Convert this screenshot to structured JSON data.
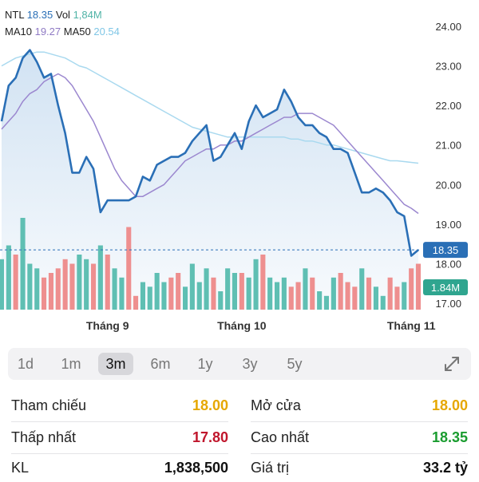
{
  "legend": {
    "ticker": "NTL",
    "price": "18.35",
    "vol_label": "Vol",
    "vol_value": "1,84M",
    "ma10_label": "MA10",
    "ma10_value": "19.27",
    "ma50_label": "MA50",
    "ma50_value": "20.54"
  },
  "colors": {
    "price_line": "#2a6fb6",
    "area_fill": "#cfe1f2",
    "ma10": "#9b87cf",
    "ma50": "#a9d9ef",
    "vol_up": "#5fbfb3",
    "vol_down": "#ee8f8f",
    "ref_line": "#2a6fb6",
    "price_tag": "#2a6fb6",
    "vol_tag": "#2fa58f"
  },
  "chart_data": {
    "type": "line",
    "y_axis": {
      "ticks": [
        "24.00",
        "23.00",
        "22.00",
        "21.00",
        "20.00",
        "19.00",
        "18.00",
        "17.00"
      ],
      "min": 16.9,
      "max": 24.3,
      "position": "right"
    },
    "x_axis": {
      "labels": [
        "Tháng 9",
        "Tháng 10",
        "Tháng 11"
      ],
      "label_index": [
        15,
        34,
        58
      ]
    },
    "reference_price": 18.35,
    "price_tag": "18.35",
    "volume_tag": "1.84M",
    "close": [
      21.6,
      22.5,
      22.7,
      23.2,
      23.4,
      23.1,
      22.7,
      22.8,
      22.0,
      21.3,
      20.3,
      20.3,
      20.7,
      20.4,
      19.3,
      19.6,
      19.6,
      19.6,
      19.6,
      19.7,
      20.2,
      20.1,
      20.5,
      20.6,
      20.7,
      20.7,
      20.8,
      21.1,
      21.3,
      21.5,
      20.6,
      20.7,
      21.0,
      21.3,
      20.9,
      21.6,
      22.0,
      21.7,
      21.8,
      21.9,
      22.4,
      22.1,
      21.7,
      21.5,
      21.5,
      21.3,
      21.2,
      20.9,
      20.9,
      20.8,
      20.3,
      19.8,
      19.8,
      19.9,
      19.8,
      19.6,
      19.3,
      19.2,
      18.2,
      18.35
    ],
    "ma10": [
      21.4,
      21.6,
      21.8,
      22.1,
      22.3,
      22.4,
      22.6,
      22.7,
      22.8,
      22.7,
      22.5,
      22.2,
      21.9,
      21.6,
      21.2,
      20.8,
      20.4,
      20.1,
      19.9,
      19.7,
      19.7,
      19.8,
      19.9,
      20.0,
      20.2,
      20.4,
      20.6,
      20.7,
      20.8,
      20.9,
      20.9,
      21.0,
      21.0,
      21.1,
      21.1,
      21.2,
      21.3,
      21.4,
      21.5,
      21.6,
      21.7,
      21.7,
      21.8,
      21.8,
      21.8,
      21.7,
      21.6,
      21.5,
      21.3,
      21.1,
      20.9,
      20.7,
      20.5,
      20.3,
      20.1,
      19.9,
      19.7,
      19.5,
      19.4,
      19.27
    ],
    "ma50": [
      23.0,
      23.1,
      23.2,
      23.25,
      23.3,
      23.35,
      23.35,
      23.3,
      23.25,
      23.2,
      23.1,
      23.0,
      22.95,
      22.85,
      22.75,
      22.65,
      22.55,
      22.45,
      22.35,
      22.25,
      22.15,
      22.05,
      21.95,
      21.85,
      21.75,
      21.65,
      21.55,
      21.45,
      21.4,
      21.35,
      21.3,
      21.25,
      21.2,
      21.2,
      21.2,
      21.2,
      21.2,
      21.2,
      21.2,
      21.2,
      21.2,
      21.15,
      21.15,
      21.1,
      21.1,
      21.05,
      21.0,
      21.0,
      20.95,
      20.9,
      20.85,
      20.8,
      20.75,
      20.7,
      20.65,
      20.6,
      20.6,
      20.58,
      20.56,
      20.54
    ],
    "volume": [
      0.55,
      0.7,
      0.6,
      1.0,
      0.5,
      0.45,
      0.35,
      0.4,
      0.45,
      0.55,
      0.5,
      0.6,
      0.55,
      0.5,
      0.7,
      0.6,
      0.45,
      0.35,
      0.9,
      0.15,
      0.3,
      0.25,
      0.4,
      0.3,
      0.35,
      0.4,
      0.25,
      0.5,
      0.3,
      0.45,
      0.35,
      0.2,
      0.45,
      0.4,
      0.4,
      0.35,
      0.55,
      0.6,
      0.35,
      0.3,
      0.35,
      0.25,
      0.3,
      0.45,
      0.35,
      0.2,
      0.15,
      0.35,
      0.4,
      0.3,
      0.25,
      0.45,
      0.35,
      0.25,
      0.15,
      0.35,
      0.25,
      0.3,
      0.45,
      0.5
    ],
    "volume_up": [
      1,
      1,
      0,
      1,
      1,
      1,
      0,
      0,
      0,
      0,
      0,
      1,
      1,
      0,
      1,
      0,
      1,
      1,
      0,
      0,
      1,
      1,
      1,
      1,
      0,
      0,
      1,
      1,
      1,
      1,
      0,
      1,
      1,
      1,
      0,
      1,
      1,
      0,
      1,
      1,
      1,
      0,
      0,
      1,
      0,
      1,
      1,
      1,
      0,
      0,
      0,
      1,
      0,
      1,
      1,
      0,
      0,
      1,
      0,
      0
    ]
  },
  "timeframes": [
    "1d",
    "1m",
    "3m",
    "6m",
    "1y",
    "3y",
    "5y"
  ],
  "active_timeframe_index": 2,
  "stats": {
    "ref_label": "Tham chiếu",
    "ref_value": "18.00",
    "open_label": "Mở cửa",
    "open_value": "18.00",
    "low_label": "Thấp nhất",
    "low_value": "17.80",
    "high_label": "Cao nhất",
    "high_value": "18.35",
    "vol_label": "KL",
    "vol_value": "1,838,500",
    "value_label": "Giá trị",
    "value_value": "33.2 tỷ"
  },
  "stat_colors": {
    "ref": "#e6a700",
    "open": "#e6a700",
    "low": "#c0162c",
    "high": "#1a9c2f",
    "neutral": "#111111"
  }
}
